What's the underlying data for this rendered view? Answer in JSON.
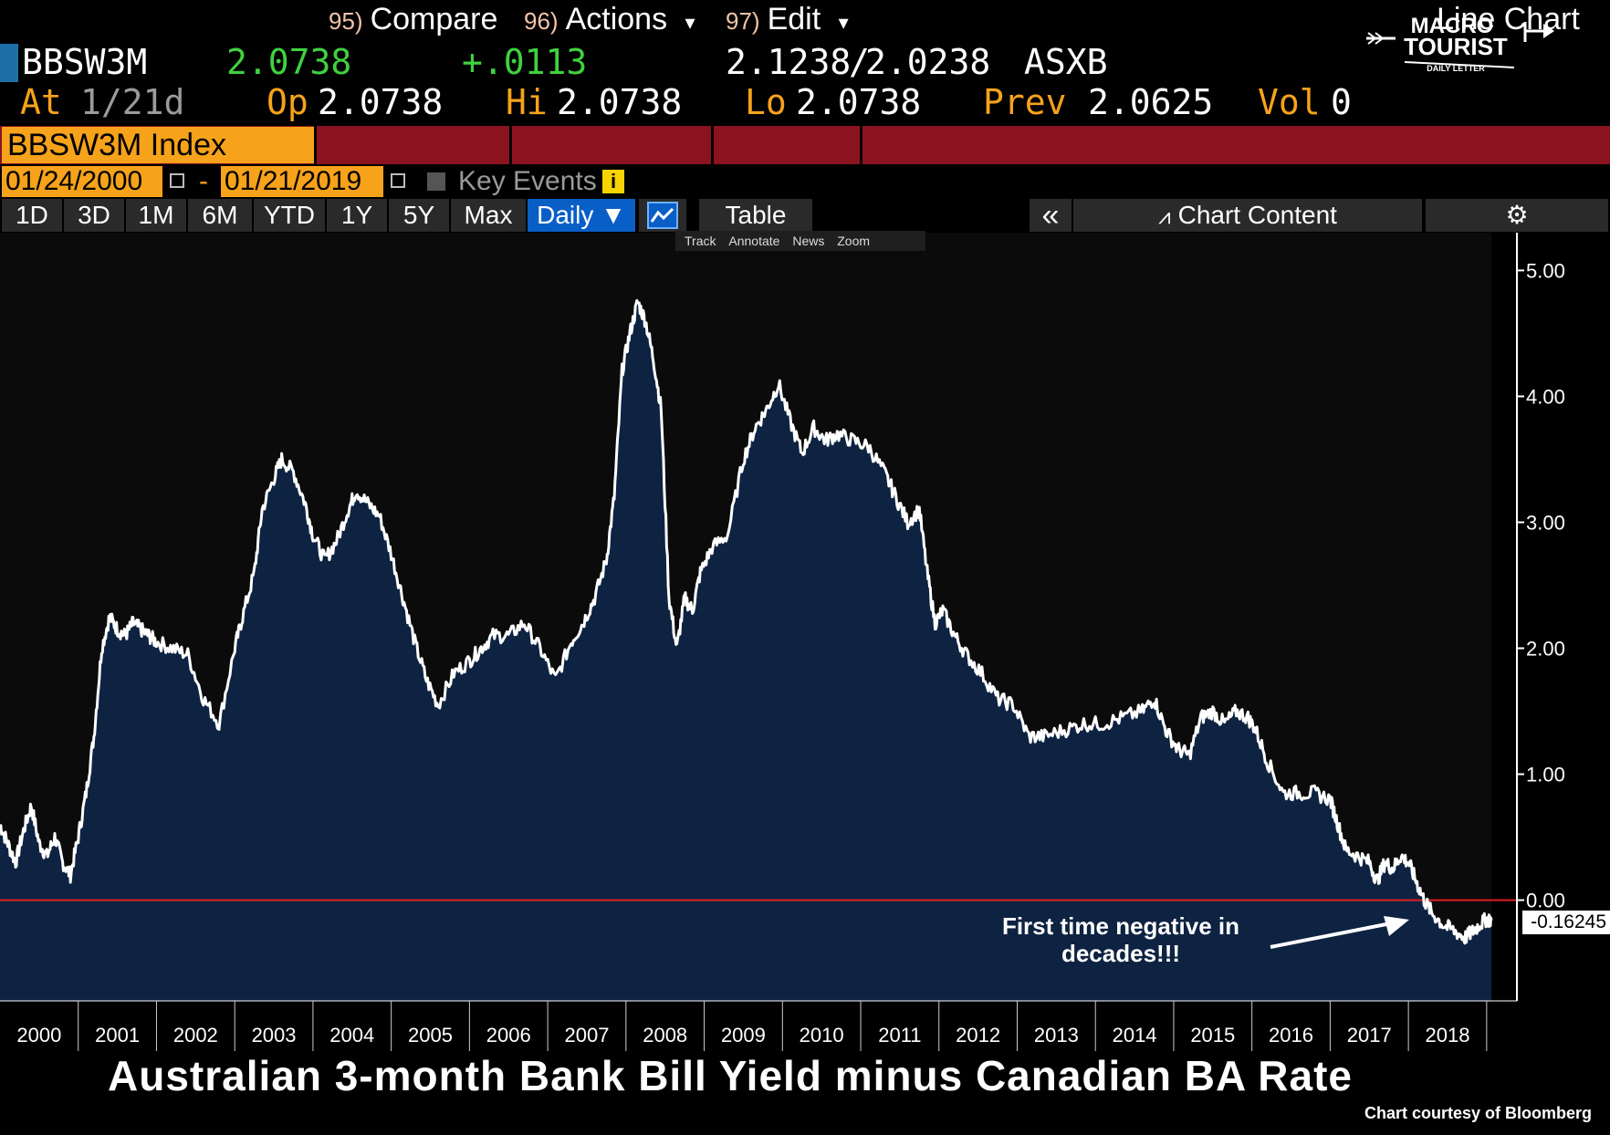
{
  "quote": {
    "ticker": "BBSW3M",
    "last": "2.0738",
    "change": "+.0113",
    "bid_ask": "2.1238",
    "bid_ask_sep": "/",
    "ask": "2.0238",
    "exchange": "ASXB",
    "at_label": "At",
    "at_value": "1/21d",
    "open_label": "Op",
    "open": "2.0738",
    "high_label": "Hi",
    "high": "2.0738",
    "low_label": "Lo",
    "low": "2.0738",
    "prev_label": "Prev",
    "prev": "2.0625",
    "vol_label": "Vol",
    "vol": "0"
  },
  "toolbar": {
    "index_name": "BBSW3M Index",
    "compare_num": "95)",
    "compare": "Compare",
    "actions_num": "96)",
    "actions": "Actions",
    "edit_num": "97)",
    "edit": "Edit",
    "chart_type": "Line Chart",
    "dropdown_glyph": "▾"
  },
  "dates": {
    "start": "01/24/2000",
    "dash": "-",
    "end": "01/21/2019",
    "key_events": "Key Events",
    "info_glyph": "i"
  },
  "periods": [
    "1D",
    "3D",
    "1M",
    "6M",
    "YTD",
    "1Y",
    "5Y",
    "Max"
  ],
  "frequency": "Daily ▼",
  "table_label": "Table",
  "collapse_glyph": "«",
  "chart_content_label": "Chart Content",
  "settings_glyph": "⚙",
  "chart_tools": [
    "Track",
    "Annotate",
    "News",
    "Zoom"
  ],
  "logo": {
    "line1": "MACRO",
    "line2": "TOURIST",
    "line3": "DAILY LETTER"
  },
  "chart_data": {
    "type": "area",
    "title": "Australian 3-month Bank Bill Yield minus Canadian BA Rate",
    "credit": "Chart courtesy of Bloomberg",
    "xlabel": "",
    "ylabel": "",
    "xlim": [
      2000.0,
      2019.06
    ],
    "ylim": [
      -0.8,
      5.3
    ],
    "y_ticks": [
      "5.00",
      "4.00",
      "3.00",
      "2.00",
      "1.00",
      "0.00"
    ],
    "y_tick_values": [
      5,
      4,
      3,
      2,
      1,
      0
    ],
    "x_ticks": [
      "2000",
      "2001",
      "2002",
      "2003",
      "2004",
      "2005",
      "2006",
      "2007",
      "2008",
      "2009",
      "2010",
      "2011",
      "2012",
      "2013",
      "2014",
      "2015",
      "2016",
      "2017",
      "2018"
    ],
    "reference_line": 0,
    "last_value_label": "-0.16245",
    "annotation": "First time negative in decades!!!",
    "series": [
      {
        "x": [
          2000.0,
          2000.1,
          2000.2,
          2000.3,
          2000.4,
          2000.5,
          2000.6,
          2000.7,
          2000.8,
          2000.9,
          2001.0,
          2001.1,
          2001.2,
          2001.3,
          2001.4,
          2001.5,
          2001.6,
          2001.7,
          2001.8,
          2001.9,
          2002.0,
          2002.2,
          2002.4,
          2002.6,
          2002.8,
          2003.0,
          2003.1,
          2003.25,
          2003.35,
          2003.5,
          2003.6,
          2003.75,
          2003.9,
          2004.0,
          2004.15,
          2004.3,
          2004.45,
          2004.55,
          2004.7,
          2004.85,
          2005.0,
          2005.15,
          2005.3,
          2005.45,
          2005.6,
          2005.8,
          2006.0,
          2006.15,
          2006.3,
          2006.5,
          2006.7,
          2006.9,
          2007.1,
          2007.3,
          2007.45,
          2007.6,
          2007.75,
          2007.85,
          2007.95,
          2008.05,
          2008.15,
          2008.25,
          2008.35,
          2008.45,
          2008.55,
          2008.65,
          2008.75,
          2008.85,
          2008.95,
          2009.1,
          2009.3,
          2009.5,
          2009.65,
          2009.8,
          2009.95,
          2010.1,
          2010.25,
          2010.4,
          2010.55,
          2010.7,
          2010.9,
          2011.1,
          2011.3,
          2011.45,
          2011.6,
          2011.75,
          2011.85,
          2011.95,
          2012.05,
          2012.2,
          2012.35,
          2012.55,
          2012.75,
          2012.95,
          2013.15,
          2013.35,
          2013.6,
          2013.85,
          2014.1,
          2014.35,
          2014.6,
          2014.75,
          2014.9,
          2015.05,
          2015.2,
          2015.35,
          2015.5,
          2015.65,
          2015.8,
          2015.95,
          2016.05,
          2016.2,
          2016.4,
          2016.6,
          2016.8,
          2017.0,
          2017.1,
          2017.2,
          2017.35,
          2017.5,
          2017.6,
          2017.7,
          2017.8,
          2017.9,
          2018.0,
          2018.1,
          2018.2,
          2018.3,
          2018.45,
          2018.6,
          2018.72,
          2018.82,
          2018.9,
          2019.0,
          2019.06
        ],
        "y": [
          0.6,
          0.45,
          0.3,
          0.55,
          0.75,
          0.45,
          0.35,
          0.5,
          0.3,
          0.2,
          0.5,
          0.85,
          1.3,
          2.0,
          2.25,
          2.15,
          2.1,
          2.2,
          2.15,
          2.1,
          2.05,
          2.0,
          1.95,
          1.6,
          1.4,
          2.0,
          2.25,
          2.6,
          3.1,
          3.35,
          3.5,
          3.4,
          3.15,
          2.9,
          2.7,
          2.85,
          3.1,
          3.25,
          3.15,
          3.05,
          2.75,
          2.4,
          2.05,
          1.75,
          1.55,
          1.8,
          1.9,
          2.0,
          2.1,
          2.1,
          2.2,
          2.0,
          1.75,
          2.05,
          2.2,
          2.4,
          2.7,
          3.2,
          4.2,
          4.5,
          4.75,
          4.6,
          4.3,
          3.9,
          2.4,
          2.0,
          2.4,
          2.3,
          2.6,
          2.8,
          2.9,
          3.5,
          3.75,
          3.9,
          4.1,
          3.8,
          3.55,
          3.75,
          3.65,
          3.7,
          3.65,
          3.6,
          3.4,
          3.2,
          3.0,
          3.1,
          2.6,
          2.2,
          2.3,
          2.1,
          1.95,
          1.8,
          1.6,
          1.55,
          1.3,
          1.3,
          1.35,
          1.4,
          1.4,
          1.45,
          1.5,
          1.6,
          1.35,
          1.2,
          1.15,
          1.45,
          1.5,
          1.4,
          1.5,
          1.45,
          1.35,
          1.1,
          0.85,
          0.85,
          0.85,
          0.8,
          0.6,
          0.4,
          0.35,
          0.3,
          0.15,
          0.3,
          0.25,
          0.35,
          0.3,
          0.15,
          0.0,
          -0.1,
          -0.2,
          -0.25,
          -0.3,
          -0.25,
          -0.2,
          -0.15,
          -0.16
        ]
      }
    ]
  }
}
